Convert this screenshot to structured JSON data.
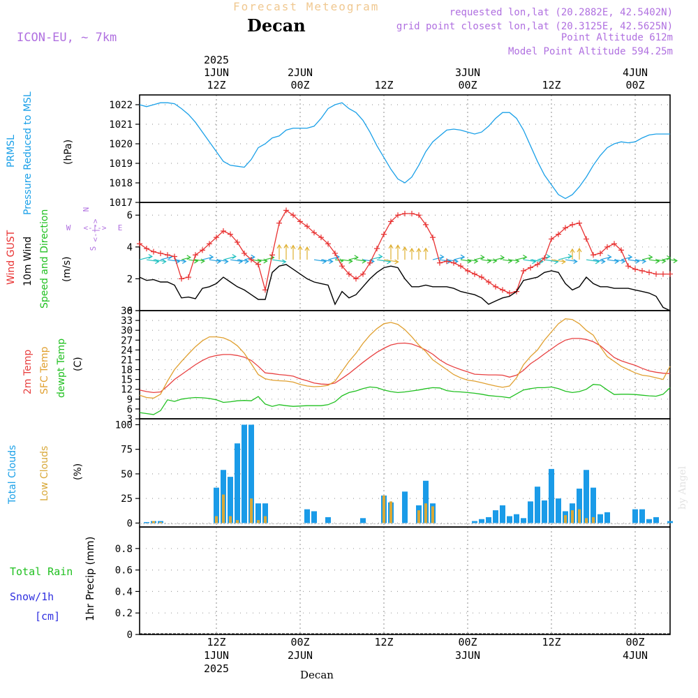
{
  "header": {
    "subtitle": "Forecast Meteogram",
    "title": "Decan",
    "model": "ICON-EU, ~ 7km",
    "requested": "requested lon,lat (20.2882E, 42.5402N)",
    "grid_point": "grid point closest lon,lat (20.3125E, 42.5625N)",
    "point_altitude": "Point Altitude 612m",
    "model_altitude": "Model Point Altitude 594.25m",
    "watermark": "by Angel",
    "footer": "Decan"
  },
  "time_axis": {
    "ticks": [
      {
        "hour": 12,
        "top": [
          "2025",
          "1JUN",
          "12Z"
        ],
        "bottom": [
          "12Z",
          "1JUN",
          "2025"
        ]
      },
      {
        "hour": 24,
        "top": [
          "2JUN",
          "00Z"
        ],
        "bottom": [
          "00Z",
          "2JUN"
        ]
      },
      {
        "hour": 36,
        "top": [
          "12Z"
        ],
        "bottom": [
          "12Z"
        ]
      },
      {
        "hour": 48,
        "top": [
          "3JUN",
          "00Z"
        ],
        "bottom": [
          "00Z",
          "3JUN"
        ]
      },
      {
        "hour": 60,
        "top": [
          "12Z"
        ],
        "bottom": [
          "12Z"
        ]
      },
      {
        "hour": 72,
        "top": [
          "4JUN",
          "00Z"
        ],
        "bottom": [
          "00Z",
          "4JUN"
        ]
      }
    ],
    "range_hours": [
      1,
      77
    ]
  },
  "labels": {
    "pressure": [
      "PRMSL",
      "Pressure Reduced to MSL"
    ],
    "pressure_unit": "(hPa)",
    "wind": [
      "Wind GUST",
      "10m Wind",
      "Speed and Direction"
    ],
    "wind_unit": "(m/s)",
    "compass": {
      "n": "N",
      "s": "S",
      "w": "W",
      "e": "E",
      "arrow": "<-|->"
    },
    "temp": [
      "2m Temp",
      "SFC Temp",
      "dewpt Temp"
    ],
    "temp_unit": "(C)",
    "clouds": [
      "Total Clouds",
      "Low Clouds"
    ],
    "clouds_unit": "(%)",
    "precip": [
      "Total  Rain",
      "Snow/1h",
      "[cm]"
    ],
    "precip_unit": "1hr Precip (mm)"
  },
  "colors": {
    "pressure": "#1aa0e8",
    "gust": "#e83030",
    "wind": "#000000",
    "temp2m": "#e84040",
    "sfc": "#e0a030",
    "dewpt": "#20c020",
    "total_clouds": "#1a9be8",
    "low_clouds": "#d8a838",
    "rain": "#20c020",
    "snow": "#3030e0",
    "purple": "#b070e0"
  },
  "chart_data": [
    {
      "type": "line",
      "name": "pressure",
      "ylim": [
        1017,
        1022.5
      ],
      "yticks": [
        1017,
        1018,
        1019,
        1020,
        1021,
        1022
      ],
      "x": [
        1,
        2,
        3,
        4,
        5,
        6,
        7,
        8,
        9,
        10,
        11,
        12,
        13,
        14,
        15,
        16,
        17,
        18,
        19,
        20,
        21,
        22,
        23,
        24,
        25,
        26,
        27,
        28,
        29,
        30,
        31,
        32,
        33,
        34,
        35,
        36,
        37,
        38,
        39,
        40,
        41,
        42,
        43,
        44,
        45,
        46,
        47,
        48,
        49,
        50,
        51,
        52,
        53,
        54,
        55,
        56,
        57,
        58,
        59,
        60,
        61,
        62,
        63,
        64,
        65,
        66,
        67,
        68,
        69,
        70,
        71,
        72,
        73,
        74,
        75,
        76,
        77
      ],
      "series": [
        {
          "values": [
            1022.0,
            1021.9,
            1022.0,
            1022.1,
            1022.1,
            1022.05,
            1021.8,
            1021.5,
            1021.1,
            1020.6,
            1020.1,
            1019.6,
            1019.1,
            1018.9,
            1018.85,
            1018.8,
            1019.2,
            1019.8,
            1020.0,
            1020.3,
            1020.4,
            1020.7,
            1020.8,
            1020.8,
            1020.8,
            1020.9,
            1021.3,
            1021.8,
            1022.0,
            1022.1,
            1021.8,
            1021.6,
            1021.2,
            1020.6,
            1019.9,
            1019.3,
            1018.7,
            1018.2,
            1018.0,
            1018.3,
            1018.9,
            1019.6,
            1020.1,
            1020.4,
            1020.7,
            1020.75,
            1020.7,
            1020.6,
            1020.5,
            1020.6,
            1020.9,
            1021.3,
            1021.6,
            1021.6,
            1021.3,
            1020.7,
            1019.9,
            1019.1,
            1018.4,
            1017.9,
            1017.4,
            1017.2,
            1017.4,
            1017.8,
            1018.3,
            1018.9,
            1019.4,
            1019.8,
            1020.0,
            1020.1,
            1020.05,
            1020.1,
            1020.3,
            1020.45,
            1020.5,
            1020.5,
            1020.5
          ]
        }
      ]
    },
    {
      "type": "line",
      "name": "wind",
      "ylim": [
        0,
        6.8
      ],
      "yticks": [
        0,
        2,
        4,
        6
      ],
      "x": [
        1,
        2,
        3,
        4,
        5,
        6,
        7,
        8,
        9,
        10,
        11,
        12,
        13,
        14,
        15,
        16,
        17,
        18,
        19,
        20,
        21,
        22,
        23,
        24,
        25,
        26,
        27,
        28,
        29,
        30,
        31,
        32,
        33,
        34,
        35,
        36,
        37,
        38,
        39,
        40,
        41,
        42,
        43,
        44,
        45,
        46,
        47,
        48,
        49,
        50,
        51,
        52,
        53,
        54,
        55,
        56,
        57,
        58,
        59,
        60,
        61,
        62,
        63,
        64,
        65,
        66,
        67,
        68,
        69,
        70,
        71,
        72,
        73,
        74,
        75,
        76,
        77
      ],
      "series": [
        {
          "name": "Wind GUST",
          "values": [
            4.2,
            3.9,
            3.7,
            3.6,
            3.5,
            3.4,
            2.0,
            2.1,
            3.5,
            3.8,
            4.2,
            4.6,
            5.0,
            4.8,
            4.3,
            3.6,
            3.2,
            2.9,
            1.3,
            3.5,
            5.5,
            6.3,
            6.0,
            5.6,
            5.3,
            4.9,
            4.6,
            4.2,
            3.6,
            2.8,
            2.3,
            2.0,
            2.3,
            3.0,
            3.9,
            4.8,
            5.6,
            6.0,
            6.1,
            6.1,
            6.0,
            5.4,
            4.6,
            3.0,
            3.1,
            3.0,
            2.8,
            2.5,
            2.3,
            2.1,
            1.8,
            1.5,
            1.3,
            1.1,
            1.2,
            2.5,
            2.7,
            2.9,
            3.3,
            4.5,
            4.8,
            5.2,
            5.4,
            5.5,
            4.5,
            3.5,
            3.6,
            4.0,
            4.2,
            3.8,
            2.8,
            2.6,
            2.5,
            2.4,
            2.3,
            2.3,
            2.3
          ]
        },
        {
          "name": "10m Wind",
          "values": [
            2.1,
            1.9,
            1.95,
            1.8,
            1.8,
            1.6,
            0.8,
            0.85,
            0.75,
            1.4,
            1.5,
            1.7,
            2.1,
            1.8,
            1.5,
            1.3,
            1.0,
            0.7,
            0.7,
            2.4,
            2.8,
            2.9,
            2.6,
            2.3,
            2.0,
            1.8,
            1.7,
            1.6,
            0.4,
            1.2,
            0.8,
            1.0,
            1.5,
            2.0,
            2.4,
            2.7,
            2.8,
            2.7,
            2.0,
            1.5,
            1.5,
            1.6,
            1.5,
            1.5,
            1.5,
            1.4,
            1.2,
            1.1,
            1.0,
            0.8,
            0.4,
            0.6,
            0.8,
            0.9,
            1.2,
            1.9,
            2.0,
            2.1,
            2.4,
            2.5,
            2.4,
            1.7,
            1.3,
            1.5,
            2.1,
            1.7,
            1.5,
            1.5,
            1.4,
            1.4,
            1.4,
            1.3,
            1.2,
            1.1,
            0.9,
            0.2,
            0.0
          ]
        }
      ],
      "arrow_speed_marker": 3.2
    },
    {
      "type": "line",
      "name": "temperature",
      "ylim": [
        3,
        36
      ],
      "yticks": [
        3,
        6,
        9,
        12,
        15,
        18,
        21,
        24,
        27,
        30,
        33,
        36
      ],
      "x": [
        1,
        2,
        3,
        4,
        5,
        6,
        7,
        8,
        9,
        10,
        11,
        12,
        13,
        14,
        15,
        16,
        17,
        18,
        19,
        20,
        21,
        22,
        23,
        24,
        25,
        26,
        27,
        28,
        29,
        30,
        31,
        32,
        33,
        34,
        35,
        36,
        37,
        38,
        39,
        40,
        41,
        42,
        43,
        44,
        45,
        46,
        47,
        48,
        49,
        50,
        51,
        52,
        53,
        54,
        55,
        56,
        57,
        58,
        59,
        60,
        61,
        62,
        63,
        64,
        65,
        66,
        67,
        68,
        69,
        70,
        71,
        72,
        73,
        74,
        75,
        76,
        77
      ],
      "series": [
        {
          "name": "2m Temp",
          "values": [
            11.8,
            11.3,
            11.0,
            11.2,
            13.0,
            15.0,
            16.5,
            18.0,
            19.5,
            20.8,
            21.8,
            22.3,
            22.6,
            22.6,
            22.3,
            21.8,
            20.8,
            19.0,
            17.0,
            16.8,
            16.5,
            16.3,
            16.0,
            15.2,
            14.6,
            13.9,
            13.6,
            13.5,
            13.9,
            15.3,
            16.8,
            18.5,
            20.2,
            21.8,
            23.3,
            24.5,
            25.5,
            26.0,
            26.1,
            25.8,
            25.0,
            24.0,
            22.7,
            21.0,
            19.7,
            18.8,
            18.0,
            17.3,
            16.6,
            16.5,
            16.4,
            16.4,
            16.3,
            15.7,
            16.3,
            17.8,
            19.8,
            21.2,
            22.8,
            24.3,
            25.8,
            27.0,
            27.5,
            27.5,
            27.2,
            26.5,
            25.3,
            23.5,
            21.7,
            20.7,
            20.0,
            19.3,
            18.4,
            17.6,
            17.2,
            16.9,
            16.8
          ]
        },
        {
          "name": "SFC Temp",
          "values": [
            10.2,
            9.5,
            9.3,
            10.5,
            14.5,
            18.0,
            20.5,
            22.8,
            25.0,
            26.8,
            28.0,
            28.0,
            27.7,
            26.8,
            25.3,
            23.0,
            19.8,
            16.5,
            15.2,
            14.8,
            14.6,
            14.5,
            14.2,
            13.5,
            13.0,
            12.8,
            12.9,
            13.2,
            14.5,
            17.5,
            20.5,
            23.0,
            26.0,
            28.5,
            30.5,
            32.0,
            32.4,
            31.8,
            30.2,
            28.0,
            25.5,
            23.5,
            21.0,
            19.5,
            18.0,
            16.5,
            15.5,
            14.8,
            14.5,
            14.0,
            13.5,
            13.0,
            12.6,
            13.0,
            15.5,
            19.5,
            22.0,
            24.0,
            27.0,
            29.5,
            32.0,
            33.5,
            33.3,
            32.0,
            30.0,
            28.5,
            25.0,
            22.0,
            20.5,
            19.0,
            18.0,
            17.0,
            16.3,
            16.0,
            15.5,
            15.0,
            19.0
          ]
        },
        {
          "name": "dewpt Temp",
          "values": [
            4.9,
            4.6,
            4.3,
            5.5,
            8.8,
            8.3,
            9.0,
            9.3,
            9.5,
            9.4,
            9.2,
            8.8,
            8.0,
            8.2,
            8.5,
            8.6,
            8.5,
            9.8,
            7.5,
            6.8,
            7.3,
            7.0,
            6.8,
            6.9,
            7.0,
            7.0,
            7.0,
            7.3,
            8.2,
            10.0,
            11.0,
            11.5,
            12.2,
            12.7,
            12.5,
            11.8,
            11.3,
            11.0,
            11.2,
            11.5,
            11.8,
            12.2,
            12.5,
            12.4,
            11.6,
            11.3,
            11.2,
            11.0,
            10.8,
            10.5,
            10.1,
            9.9,
            9.7,
            9.4,
            10.6,
            11.8,
            12.2,
            12.5,
            12.5,
            12.7,
            12.2,
            11.4,
            11.0,
            11.3,
            12.0,
            13.5,
            13.3,
            11.8,
            10.4,
            10.5,
            10.5,
            10.4,
            10.2,
            10.0,
            9.9,
            10.5,
            12.5
          ]
        }
      ]
    },
    {
      "type": "bar",
      "name": "clouds",
      "ylim": [
        -4,
        106
      ],
      "yticks": [
        0,
        25,
        50,
        75,
        100
      ],
      "x": [
        1,
        2,
        3,
        4,
        5,
        6,
        7,
        8,
        9,
        10,
        11,
        12,
        13,
        14,
        15,
        16,
        17,
        18,
        19,
        20,
        21,
        22,
        23,
        24,
        25,
        26,
        27,
        28,
        29,
        30,
        31,
        32,
        33,
        34,
        35,
        36,
        37,
        38,
        39,
        40,
        41,
        42,
        43,
        44,
        45,
        46,
        47,
        48,
        49,
        50,
        51,
        52,
        53,
        54,
        55,
        56,
        57,
        58,
        59,
        60,
        61,
        62,
        63,
        64,
        65,
        66,
        67,
        68,
        69,
        70,
        71,
        72,
        73,
        74,
        75,
        76,
        77
      ],
      "series": [
        {
          "name": "Total Clouds",
          "values": [
            0,
            1,
            2,
            2,
            0,
            0,
            0,
            0,
            0,
            0,
            0,
            36,
            54,
            47,
            81,
            100,
            100,
            20,
            20,
            0,
            0,
            0,
            0,
            0,
            14,
            12,
            0,
            6,
            0,
            0,
            0,
            0,
            5,
            0,
            0,
            28,
            21,
            0,
            32,
            0,
            18,
            43,
            20,
            0,
            0,
            0,
            0,
            0,
            2,
            4,
            6,
            13,
            18,
            7,
            9,
            5,
            22,
            37,
            23,
            55,
            25,
            12,
            20,
            35,
            54,
            36,
            9,
            11,
            0,
            0,
            0,
            14,
            14,
            4,
            6,
            0,
            2
          ]
        },
        {
          "name": "Low Clouds",
          "values": [
            0,
            0,
            2,
            1,
            0,
            0,
            0,
            0,
            0,
            0,
            0,
            7,
            29,
            7,
            3,
            0,
            25,
            3,
            7,
            0,
            0,
            0,
            0,
            0,
            0,
            0,
            0,
            0,
            0,
            0,
            0,
            0,
            0,
            0,
            0,
            28,
            22,
            0,
            0,
            0,
            13,
            20,
            17,
            0,
            0,
            0,
            0,
            0,
            0,
            0,
            0,
            0,
            0,
            0,
            0,
            0,
            0,
            0,
            0,
            0,
            0,
            8,
            13,
            14,
            5,
            6,
            0,
            0,
            0,
            0,
            0,
            0,
            0,
            0,
            0,
            0,
            0
          ]
        }
      ]
    },
    {
      "type": "bar",
      "name": "precipitation",
      "ylim": [
        0,
        1.0
      ],
      "yticks": [
        0,
        0.2,
        0.4,
        0.6,
        0.8
      ],
      "series": [
        {
          "name": "Total Rain",
          "values": []
        },
        {
          "name": "Snow/1h",
          "values": []
        }
      ]
    }
  ]
}
